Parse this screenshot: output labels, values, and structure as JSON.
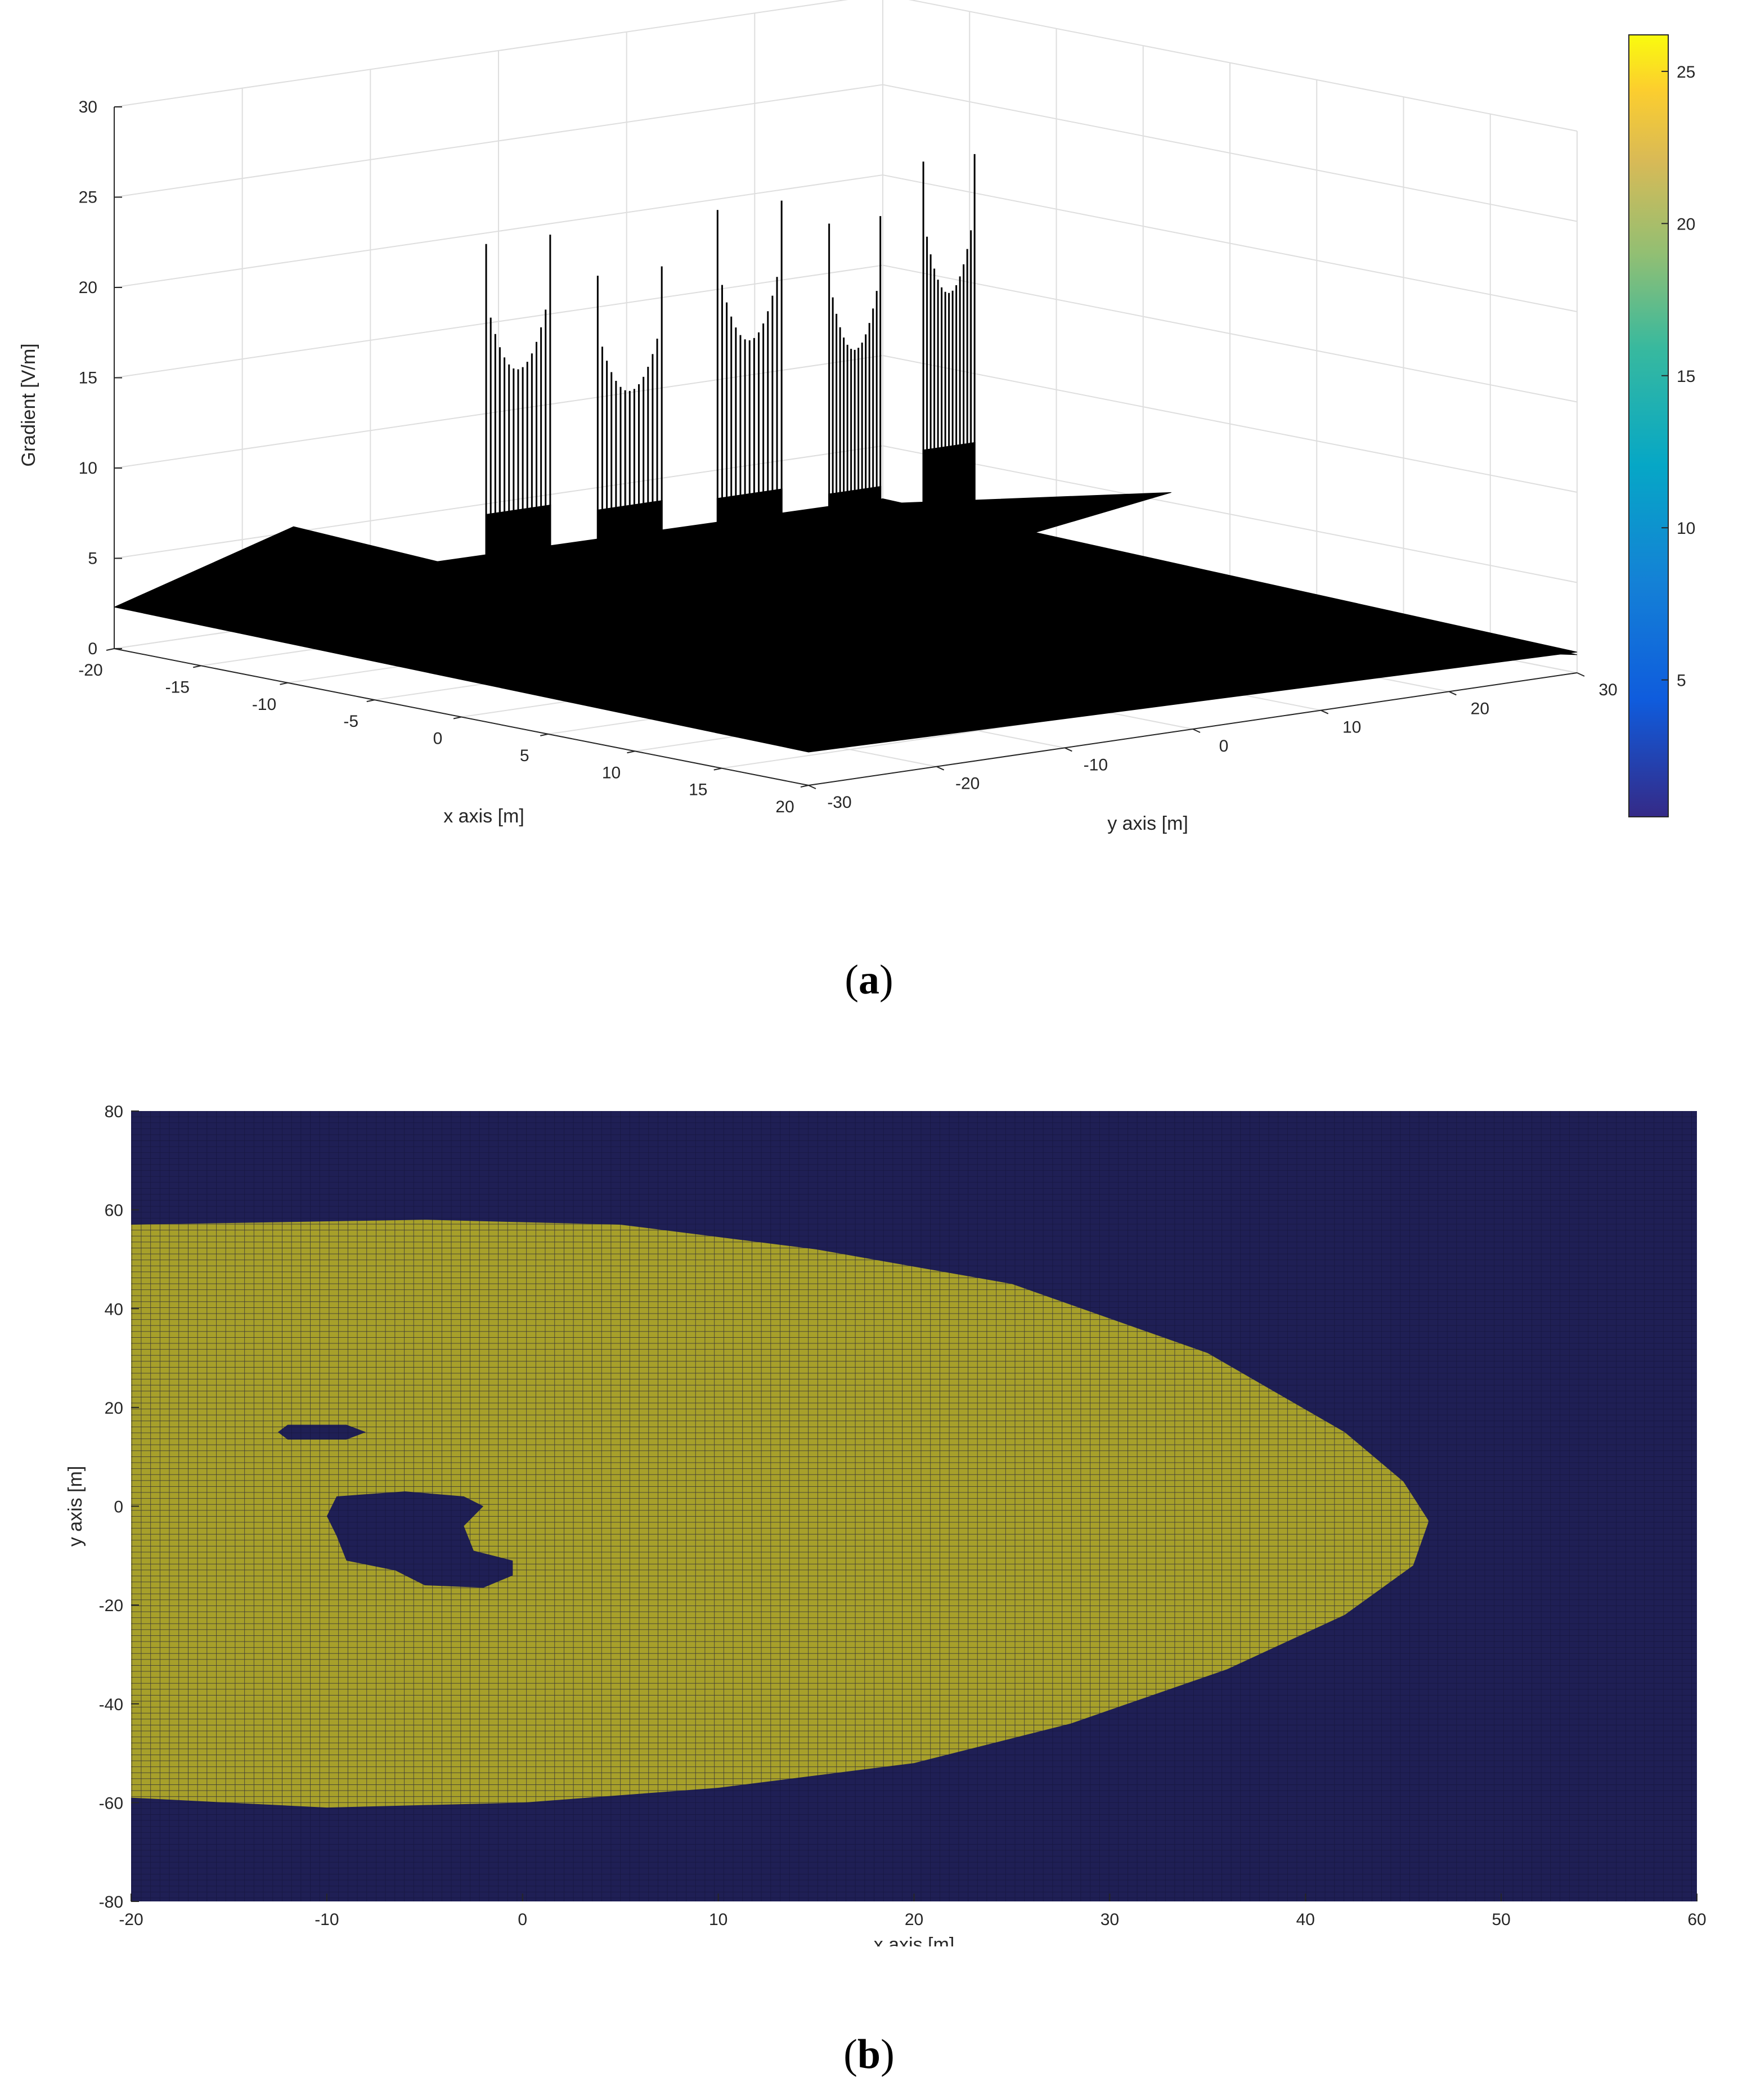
{
  "panel_labels": {
    "a": "a",
    "b": "b"
  },
  "chart_data": [
    {
      "id": "a",
      "type": "surface",
      "title": "",
      "xlabel": "x axis [m]",
      "ylabel": "y axis [m]",
      "zlabel": "Gradient [V/m]",
      "xlim": [
        -20,
        20
      ],
      "ylim": [
        -30,
        30
      ],
      "zlim": [
        0,
        30
      ],
      "x_ticks": [
        -20,
        -15,
        -10,
        -5,
        0,
        5,
        10,
        15,
        20
      ],
      "y_ticks": [
        -30,
        -20,
        -10,
        0,
        10,
        20,
        30
      ],
      "z_ticks": [
        0,
        5,
        10,
        15,
        20,
        25,
        30
      ],
      "grid": true,
      "surface_color": "#000000",
      "base_level": 2.3,
      "spike_groups": [
        {
          "x": -3,
          "y": [
            -24,
            -19
          ],
          "peak": 25,
          "base": 10
        },
        {
          "x": -1,
          "y": [
            -18,
            -13
          ],
          "peak": 23,
          "base": 10
        },
        {
          "x": 0,
          "y": [
            -10,
            -5
          ],
          "peak": 26,
          "base": 10
        },
        {
          "x": 2,
          "y": [
            -4,
            0
          ],
          "peak": 25,
          "base": 10
        },
        {
          "x": 3,
          "y": [
            2,
            6
          ],
          "peak": 28,
          "base": 12
        }
      ],
      "colorbar": {
        "ticks": [
          5,
          10,
          15,
          20,
          25
        ],
        "range": [
          0.5,
          26.2
        ],
        "colormap": "parula"
      }
    },
    {
      "id": "b",
      "type": "heatmap",
      "title": "",
      "xlabel": "x axis [m]",
      "ylabel": "y axis [m]",
      "xlim": [
        -20,
        60
      ],
      "ylim": [
        -80,
        80
      ],
      "x_ticks": [
        -20,
        -10,
        0,
        10,
        20,
        30,
        40,
        50,
        60
      ],
      "y_ticks": [
        -80,
        -60,
        -40,
        -20,
        0,
        20,
        40,
        60,
        80
      ],
      "colors": {
        "background": "#1f1f55",
        "region": "#a7a02a",
        "grid_line": "#14143a"
      },
      "region_outline": [
        [
          -20,
          57
        ],
        [
          -5,
          58
        ],
        [
          5,
          57
        ],
        [
          15,
          52
        ],
        [
          25,
          45
        ],
        [
          35,
          31
        ],
        [
          42,
          15
        ],
        [
          45,
          5
        ],
        [
          46.3,
          -3
        ],
        [
          45.5,
          -12
        ],
        [
          42,
          -22
        ],
        [
          36,
          -33
        ],
        [
          28,
          -44
        ],
        [
          20,
          -52
        ],
        [
          10,
          -57
        ],
        [
          0,
          -60
        ],
        [
          -10,
          -61
        ],
        [
          -20,
          -59
        ]
      ],
      "holes": [
        [
          [
            -12,
            16.5
          ],
          [
            -9,
            16.5
          ],
          [
            -8,
            15
          ],
          [
            -9,
            13.5
          ],
          [
            -12,
            13.5
          ],
          [
            -12.5,
            15
          ]
        ],
        [
          [
            -9.5,
            2
          ],
          [
            -6,
            3
          ],
          [
            -3,
            2
          ],
          [
            -2,
            0
          ],
          [
            -3,
            -4
          ],
          [
            -2.5,
            -9
          ],
          [
            -0.5,
            -11
          ],
          [
            -0.5,
            -14
          ],
          [
            -2,
            -16.5
          ],
          [
            -5,
            -16
          ],
          [
            -6.5,
            -13
          ],
          [
            -9,
            -11
          ],
          [
            -9.5,
            -6
          ],
          [
            -10,
            -2
          ]
        ]
      ]
    }
  ]
}
